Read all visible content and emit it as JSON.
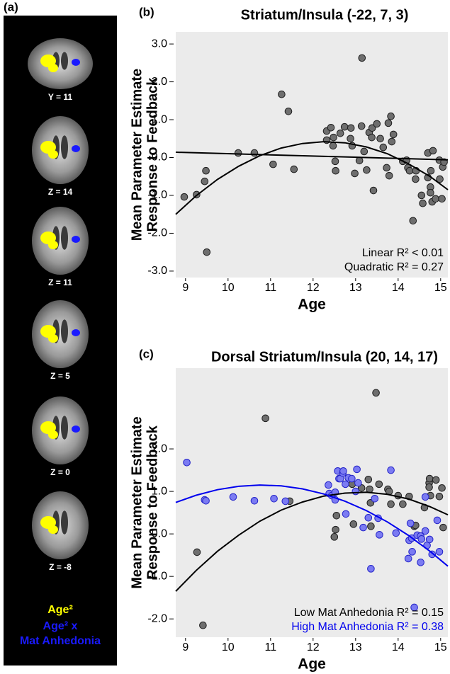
{
  "panel_a": {
    "label": "(a)",
    "slices": [
      "Y = 11",
      "Z = 14",
      "Z = 11",
      "Z = 5",
      "Z = 0",
      "Z = -8"
    ],
    "legend": [
      {
        "text": "Age²",
        "color": "#ffff00"
      },
      {
        "text": "Age² x",
        "color": "#1a1aff"
      },
      {
        "text": "Mat Anhedonia",
        "color": "#1a1aff"
      }
    ]
  },
  "chart_data": [
    {
      "type": "scatter",
      "label": "(b)",
      "title": "Striatum/Insula (-22, 7, 3)",
      "x_label": "Age",
      "y_label": [
        "Mean Parameter Estimate",
        "Response to Feedback"
      ],
      "xlim": [
        8.77,
        15.17
      ],
      "ylim": [
        -3.17,
        3.32
      ],
      "xticks": [
        9,
        10,
        11,
        12,
        13,
        14,
        15
      ],
      "yticks": [
        {
          "value": 3,
          "label": "3.0"
        },
        {
          "value": 2,
          "label": "2.0"
        },
        {
          "value": 1,
          "label": "1.0"
        },
        {
          "value": 0,
          "label": "0.0"
        },
        {
          "value": -1,
          "label": "-1.0"
        },
        {
          "value": -2,
          "label": "-2.0"
        },
        {
          "value": -3,
          "label": "-3.0"
        }
      ],
      "background": "#ebebeb",
      "series": [
        {
          "color": "#6e6e6e",
          "edge_color": "#1e1e1e",
          "x": [
            8.97,
            9.26,
            9.45,
            9.48,
            9.5,
            10.24,
            10.62,
            11.06,
            11.26,
            11.42,
            11.55,
            12.32,
            12.32,
            12.42,
            12.48,
            12.47,
            12.53,
            12.52,
            12.64,
            12.74,
            12.88,
            12.89,
            12.92,
            12.98,
            13.09,
            13.14,
            13.2,
            13.26,
            13.32,
            13.39,
            13.38,
            13.42,
            13.15,
            13.5,
            13.58,
            13.65,
            13.73,
            13.79,
            13.77,
            13.83,
            13.85,
            13.89,
            14.11,
            14.2,
            14.23,
            14.27,
            14.35,
            14.41,
            14.42,
            14.55,
            14.58,
            14.7,
            14.7,
            14.76,
            14.76,
            14.77,
            14.8,
            14.82,
            14.88,
            14.97,
            14.98,
            15.03,
            15.05,
            15.08
          ],
          "values": [
            -1.04,
            -0.98,
            -0.63,
            -0.35,
            -2.5,
            0.12,
            0.12,
            -0.18,
            1.67,
            1.22,
            -0.31,
            0.7,
            0.46,
            0.79,
            0.53,
            0.31,
            -0.35,
            -0.1,
            0.64,
            0.81,
            0.5,
            0.78,
            0.31,
            -0.42,
            -0.08,
            0.83,
            0.16,
            -0.33,
            0.66,
            0.78,
            0.53,
            -0.87,
            2.63,
            0.89,
            0.5,
            0.27,
            -0.27,
            -0.48,
            0.91,
            1.09,
            0.42,
            0.61,
            -0.1,
            -0.07,
            -0.27,
            -0.35,
            -1.67,
            -0.57,
            -0.35,
            -1.0,
            -1.21,
            -0.53,
            0.12,
            -0.78,
            -0.93,
            -0.35,
            -1.17,
            0.18,
            -1.09,
            -0.07,
            -0.57,
            -1.09,
            -0.25,
            -0.12
          ]
        }
      ],
      "fit_lines": [
        {
          "color": "#000000",
          "x": [
            8.77,
            15.17
          ],
          "values": [
            0.14,
            -0.06
          ]
        },
        {
          "color": "#000000",
          "x": [
            8.77,
            9.25,
            9.75,
            10.25,
            10.75,
            11.25,
            11.75,
            12.25,
            12.75,
            13.25,
            13.75,
            14.25,
            14.75,
            15.17
          ],
          "values": [
            -1.5,
            -1.01,
            -0.58,
            -0.23,
            0.05,
            0.25,
            0.37,
            0.42,
            0.39,
            0.28,
            0.1,
            -0.17,
            -0.5,
            -0.85
          ]
        }
      ],
      "annotations": [
        {
          "text": "Linear R² < 0.01",
          "color": "#000000"
        },
        {
          "text": "Quadratic R² = 0.27",
          "color": "#000000"
        }
      ]
    },
    {
      "type": "scatter",
      "label": "(c)",
      "title": "Dorsal Striatum/Insula (20, 14, 17)",
      "x_label": "Age",
      "y_label": [
        "Mean Parameter Estimate",
        "Response to Feedback"
      ],
      "xlim": [
        8.77,
        15.17
      ],
      "ylim": [
        -2.43,
        3.9
      ],
      "xticks": [
        9,
        10,
        11,
        12,
        13,
        14,
        15
      ],
      "yticks": [
        {
          "value": 2,
          "label": "2.0"
        },
        {
          "value": 1,
          "label": "1.0"
        },
        {
          "value": 0,
          "label": "0.0"
        },
        {
          "value": -1,
          "label": "-1.0"
        },
        {
          "value": -2,
          "label": "-2.0"
        }
      ],
      "background": "#ebebeb",
      "series": [
        {
          "color": "#6e6e6e",
          "edge_color": "#1e1e1e",
          "x": [
            9.27,
            9.41,
            10.88,
            11.45,
            12.5,
            12.53,
            12.55,
            12.95,
            12.92,
            13.14,
            13.3,
            13.33,
            13.35,
            13.36,
            13.48,
            13.55,
            13.76,
            13.79,
            13.83,
            14.0,
            14.11,
            14.26,
            14.38,
            14.41,
            14.62,
            14.73,
            14.73,
            14.74,
            14.76,
            14.89,
            14.97,
            15.03,
            15.06
          ],
          "values": [
            -0.43,
            -2.15,
            2.72,
            0.77,
            -0.07,
            0.1,
            0.43,
            0.23,
            1.17,
            1.08,
            1.28,
            1.05,
            0.73,
            0.18,
            3.32,
            1.17,
            1.05,
            1.0,
            0.7,
            0.9,
            0.7,
            0.88,
            0.18,
            0.2,
            0.62,
            1.2,
            1.1,
            1.3,
            0.9,
            1.27,
            0.88,
            1.08,
            0.15
          ]
        },
        {
          "color": "#7b7bf2",
          "edge_color": "#2323c8",
          "x": [
            9.03,
            9.45,
            9.48,
            10.12,
            10.62,
            11.08,
            11.35,
            12.36,
            12.38,
            12.44,
            12.52,
            12.52,
            12.58,
            12.61,
            12.64,
            12.7,
            12.71,
            12.76,
            12.77,
            12.83,
            12.91,
            13.0,
            13.03,
            13.06,
            13.18,
            13.3,
            13.36,
            13.45,
            13.53,
            13.56,
            13.83,
            13.95,
            14.26,
            14.24,
            14.29,
            14.32,
            14.33,
            14.45,
            14.53,
            14.53,
            14.55,
            14.64,
            14.64,
            14.68,
            14.74,
            14.8,
            14.92,
            14.97,
            14.38
          ],
          "values": [
            1.68,
            0.8,
            0.78,
            0.87,
            0.78,
            0.83,
            0.77,
            1.15,
            0.95,
            0.9,
            0.98,
            0.8,
            1.48,
            1.3,
            1.3,
            1.43,
            1.48,
            1.17,
            0.47,
            1.32,
            1.3,
            1.0,
            1.52,
            1.2,
            0.15,
            0.38,
            -0.82,
            0.83,
            0.37,
            -0.02,
            1.5,
            0.02,
            -0.15,
            -0.58,
            0.25,
            -0.1,
            -0.42,
            -0.03,
            -0.67,
            -0.05,
            -0.12,
            0.87,
            0.07,
            -0.27,
            -0.13,
            -0.48,
            0.32,
            -0.42,
            -1.73
          ]
        }
      ],
      "fit_lines": [
        {
          "color": "#000000",
          "x": [
            8.77,
            9.25,
            9.75,
            10.25,
            10.75,
            11.25,
            11.75,
            12.25,
            12.75,
            13.25,
            13.75,
            14.25,
            14.75,
            15.17
          ],
          "values": [
            -1.35,
            -0.86,
            -0.41,
            -0.03,
            0.3,
            0.56,
            0.75,
            0.89,
            0.96,
            0.98,
            0.93,
            0.82,
            0.64,
            0.45
          ]
        },
        {
          "color": "#0000ee",
          "x": [
            8.77,
            9.25,
            9.75,
            10.25,
            10.75,
            11.25,
            11.75,
            12.25,
            12.75,
            13.25,
            13.75,
            14.25,
            14.75,
            15.17
          ],
          "values": [
            0.74,
            0.91,
            1.04,
            1.12,
            1.15,
            1.13,
            1.06,
            0.94,
            0.77,
            0.55,
            0.28,
            -0.04,
            -0.41,
            -0.76
          ]
        }
      ],
      "annotations": [
        {
          "text": "Low Mat Anhedonia R² = 0.15",
          "color": "#000000"
        },
        {
          "text": "High Mat Anhedonia R² = 0.38",
          "color": "#0000ee"
        }
      ]
    }
  ]
}
